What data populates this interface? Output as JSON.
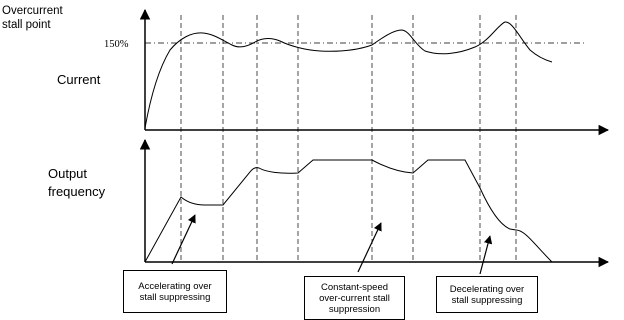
{
  "current_panel": {
    "stall_label_line1": "Overcurrent",
    "stall_label_line2": "stall point",
    "threshold_label": "150%",
    "y_label": "Current"
  },
  "frequency_panel": {
    "y_label_line1": "Output",
    "y_label_line2": "frequency"
  },
  "callouts": [
    {
      "lines": [
        "Accelerating over",
        "stall suppressing"
      ]
    },
    {
      "lines": [
        "Constant-speed",
        "over-current stall",
        "suppression"
      ]
    },
    {
      "lines": [
        "Decelerating over",
        "stall suppressing"
      ]
    }
  ]
}
